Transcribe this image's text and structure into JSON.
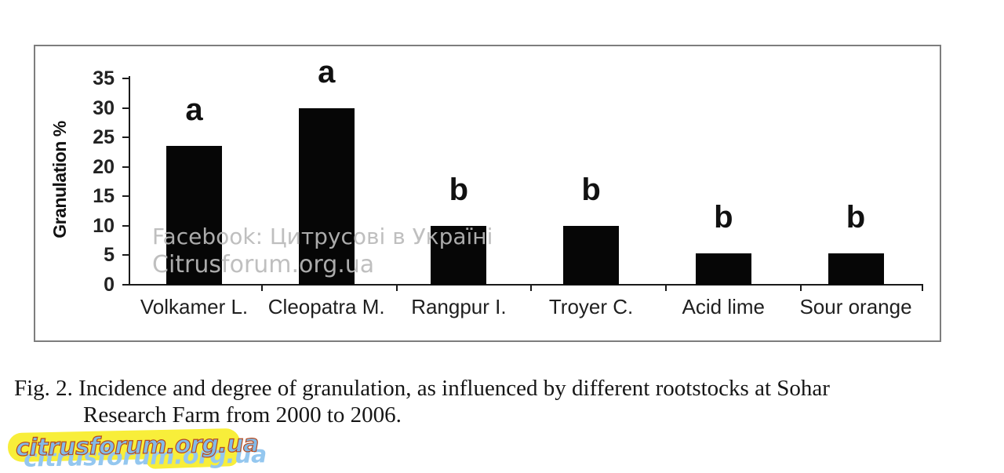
{
  "chart_data": {
    "type": "bar",
    "title": "",
    "xlabel": "",
    "ylabel": "Granulation %",
    "categories": [
      "Volkamer L.",
      "Cleopatra M.",
      "Rangpur I.",
      "Troyer C.",
      "Acid lime",
      "Sour orange"
    ],
    "values": [
      23.6,
      30,
      10,
      10,
      5.3,
      5.3
    ],
    "significance_letters": [
      "a",
      "a",
      "b",
      "b",
      "b",
      "b"
    ],
    "yticks": [
      0,
      5,
      10,
      15,
      20,
      25,
      30,
      35
    ],
    "ylim": [
      0,
      35
    ],
    "grid": false,
    "legend": false,
    "bar_color": "#060606"
  },
  "caption": {
    "line1": "Fig. 2. Incidence and degree of granulation, as influenced by different rootstocks at Sohar",
    "line2": "Research Farm from 2000 to 2006."
  },
  "watermarks": {
    "overlay_line1": "Facebook: Цитрусові в Україні",
    "overlay_line2": "Citrusforum.org.ua",
    "sticker_text": "citrusforum.org.ua",
    "colors": {
      "overlay_text": "#bababa",
      "sticker_highlight": "#f8ee3a",
      "sticker_text": "#82bae8",
      "sticker_outline": "#b84a1e",
      "sticker_shadow": "#94c7ef"
    }
  }
}
